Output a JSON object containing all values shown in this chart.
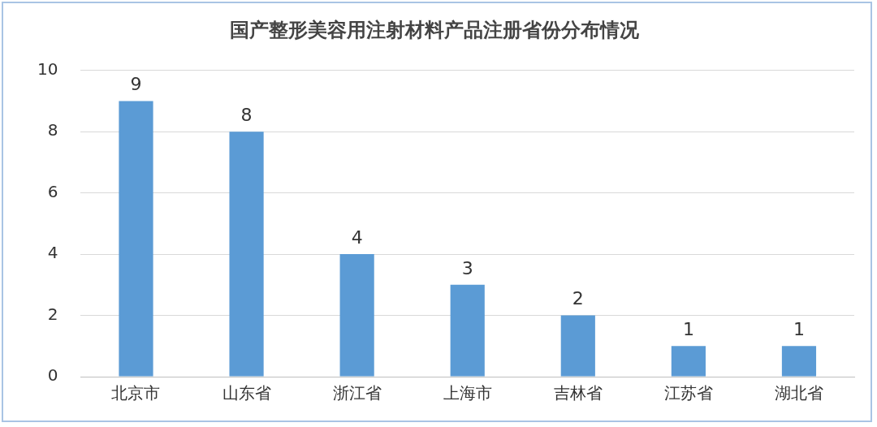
{
  "chart_data": {
    "type": "bar",
    "title": "国产整形美容用注射材料产品注册省份分布情况",
    "categories": [
      "北京市",
      "山东省",
      "浙江省",
      "上海市",
      "吉林省",
      "江苏省",
      "湖北省"
    ],
    "values": [
      9,
      8,
      4,
      3,
      2,
      1,
      1
    ],
    "color": "#5b9bd5",
    "ylim": [
      0,
      10
    ],
    "yticks": [
      0,
      2,
      4,
      6,
      8,
      10
    ],
    "grid": "y",
    "data_labels": true
  }
}
